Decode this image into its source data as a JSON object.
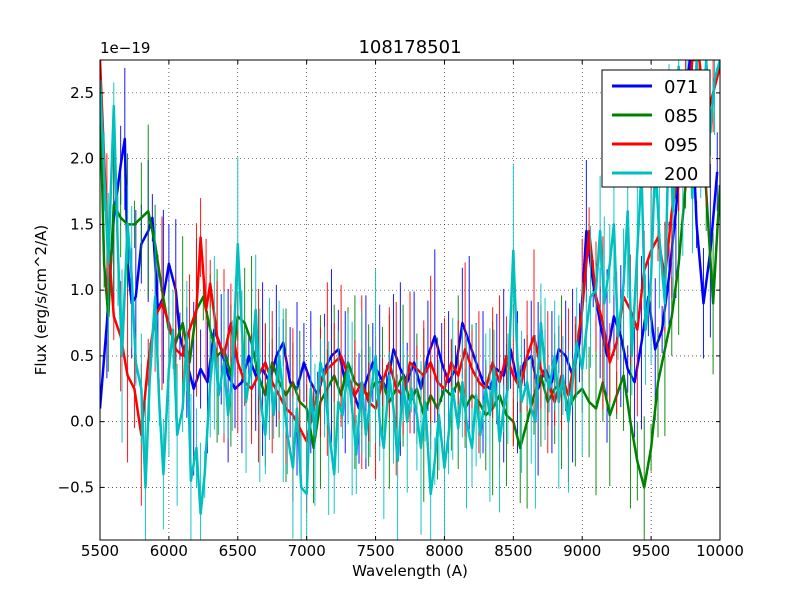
{
  "chart_data": {
    "type": "line",
    "title": "108178501",
    "xlabel": "Wavelength (A)",
    "ylabel": "Flux (erg/s/cm^2/A)",
    "offset_text": "1e−19",
    "xlim": [
      5500,
      10000
    ],
    "ylim": [
      -0.9,
      2.75
    ],
    "xticks": [
      5500,
      6000,
      6500,
      7000,
      7500,
      8000,
      8500,
      9000,
      9500,
      10000
    ],
    "yticks": [
      -0.5,
      0.0,
      0.5,
      1.0,
      1.5,
      2.0,
      2.5
    ],
    "ytick_labels": [
      "−0.5",
      "0.0",
      "0.5",
      "1.0",
      "1.5",
      "2.0",
      "2.5"
    ],
    "grid": true,
    "legend_position": "top-right",
    "series": [
      {
        "name": "071",
        "color": "#0000ff",
        "x": [
          5500,
          5550,
          5600,
          5650,
          5680,
          5700,
          5730,
          5760,
          5800,
          5850,
          5880,
          5920,
          5960,
          6000,
          6050,
          6080,
          6130,
          6180,
          6230,
          6280,
          6330,
          6380,
          6430,
          6480,
          6530,
          6580,
          6630,
          6680,
          6730,
          6780,
          6830,
          6880,
          6930,
          6980,
          7030,
          7080,
          7130,
          7180,
          7230,
          7280,
          7330,
          7380,
          7430,
          7480,
          7530,
          7580,
          7630,
          7680,
          7730,
          7780,
          7830,
          7880,
          7930,
          7980,
          8030,
          8080,
          8130,
          8180,
          8230,
          8280,
          8330,
          8380,
          8430,
          8480,
          8530,
          8580,
          8630,
          8680,
          8730,
          8780,
          8830,
          8880,
          8930,
          8980,
          9030,
          9080,
          9130,
          9180,
          9230,
          9280,
          9330,
          9380,
          9430,
          9480,
          9530,
          9580,
          9630,
          9680,
          9730,
          9780,
          9830,
          9880,
          9930,
          9980
        ],
        "y": [
          0.1,
          0.75,
          1.55,
          1.95,
          2.15,
          1.2,
          0.9,
          0.95,
          1.35,
          1.45,
          1.55,
          0.85,
          0.95,
          1.2,
          1.0,
          0.65,
          0.45,
          0.25,
          0.4,
          0.3,
          0.7,
          0.55,
          0.35,
          0.25,
          0.3,
          0.5,
          0.35,
          0.4,
          0.3,
          0.5,
          0.6,
          0.3,
          0.25,
          0.45,
          0.3,
          0.2,
          0.4,
          0.5,
          0.55,
          0.3,
          0.25,
          0.1,
          0.3,
          0.45,
          0.35,
          0.25,
          0.55,
          0.4,
          0.3,
          0.45,
          0.25,
          0.5,
          0.65,
          0.45,
          0.3,
          0.4,
          0.75,
          0.6,
          0.45,
          0.3,
          0.25,
          0.4,
          0.35,
          0.55,
          0.3,
          0.45,
          0.5,
          0.25,
          0.4,
          0.3,
          0.55,
          0.5,
          0.35,
          0.6,
          1.45,
          1.05,
          0.75,
          0.5,
          0.8,
          0.65,
          0.4,
          0.3,
          0.6,
          0.95,
          0.55,
          0.7,
          1.1,
          1.6,
          2.2,
          2.75,
          1.5,
          0.9,
          1.3,
          1.9
        ]
      },
      {
        "name": "085",
        "color": "#008000",
        "x": [
          5500,
          5530,
          5560,
          5600,
          5650,
          5700,
          5750,
          5800,
          5850,
          5900,
          5950,
          6000,
          6050,
          6100,
          6150,
          6200,
          6250,
          6300,
          6350,
          6400,
          6450,
          6500,
          6550,
          6600,
          6650,
          6700,
          6750,
          6800,
          6850,
          6900,
          6950,
          7000,
          7050,
          7100,
          7150,
          7200,
          7250,
          7300,
          7350,
          7400,
          7450,
          7500,
          7550,
          7600,
          7650,
          7700,
          7750,
          7800,
          7850,
          7900,
          7950,
          8000,
          8050,
          8100,
          8150,
          8200,
          8250,
          8300,
          8350,
          8400,
          8450,
          8500,
          8550,
          8600,
          8650,
          8700,
          8750,
          8800,
          8850,
          8900,
          8950,
          9000,
          9050,
          9100,
          9150,
          9200,
          9250,
          9300,
          9350,
          9400,
          9450,
          9500,
          9550,
          9600,
          9650,
          9700,
          9750,
          9800,
          9850,
          9900,
          9950,
          10000
        ],
        "y": [
          2.5,
          1.2,
          0.8,
          1.65,
          1.55,
          1.5,
          1.5,
          1.55,
          1.6,
          1.35,
          1.0,
          0.7,
          0.6,
          0.75,
          0.45,
          0.85,
          0.95,
          0.7,
          0.5,
          0.55,
          0.35,
          0.8,
          0.75,
          0.6,
          0.35,
          0.2,
          0.45,
          0.3,
          0.2,
          0.3,
          0.15,
          0.1,
          -0.2,
          0.15,
          0.25,
          0.35,
          0.2,
          0.45,
          0.3,
          0.25,
          0.2,
          0.3,
          0.3,
          0.15,
          0.25,
          0.35,
          0.15,
          0.25,
          0.05,
          0.2,
          0.1,
          0.25,
          0.2,
          0.3,
          0.1,
          0.2,
          0.15,
          0.05,
          0.1,
          0.2,
          0.05,
          0.0,
          -0.2,
          0.0,
          0.2,
          0.35,
          0.15,
          0.25,
          0.3,
          0.1,
          0.2,
          0.25,
          0.15,
          0.1,
          0.3,
          0.05,
          0.2,
          0.35,
          0.0,
          -0.3,
          -0.5,
          -0.2,
          0.3,
          0.55,
          0.8,
          1.2,
          1.8,
          2.3,
          2.6,
          1.75,
          0.9,
          1.8
        ]
      },
      {
        "name": "095",
        "color": "#ff0000",
        "x": [
          5500,
          5550,
          5600,
          5650,
          5700,
          5750,
          5800,
          5850,
          5900,
          5950,
          6000,
          6050,
          6100,
          6150,
          6200,
          6230,
          6270,
          6300,
          6350,
          6400,
          6450,
          6500,
          6550,
          6600,
          6650,
          6700,
          6750,
          6800,
          6850,
          6900,
          6950,
          7000,
          7050,
          7100,
          7150,
          7200,
          7250,
          7300,
          7350,
          7400,
          7450,
          7500,
          7550,
          7600,
          7650,
          7700,
          7750,
          7800,
          7850,
          7900,
          7950,
          8000,
          8050,
          8100,
          8150,
          8200,
          8250,
          8300,
          8350,
          8400,
          8450,
          8500,
          8550,
          8600,
          8650,
          8700,
          8750,
          8800,
          8850,
          8900,
          8950,
          9000,
          9050,
          9100,
          9150,
          9200,
          9250,
          9300,
          9350,
          9400,
          9450,
          9500,
          9550,
          9600,
          9650,
          9700,
          9750,
          9800,
          9850,
          9900,
          9950,
          10000
        ],
        "y": [
          2.75,
          1.5,
          0.8,
          0.65,
          0.35,
          0.25,
          -0.1,
          0.45,
          0.8,
          0.9,
          0.75,
          0.55,
          0.5,
          0.7,
          0.85,
          1.4,
          0.85,
          1.05,
          0.65,
          0.5,
          0.75,
          0.45,
          0.3,
          0.25,
          0.35,
          0.45,
          0.3,
          0.2,
          0.1,
          0.05,
          -0.05,
          -0.15,
          0.1,
          0.3,
          0.4,
          0.45,
          0.5,
          0.35,
          0.2,
          0.3,
          0.15,
          0.1,
          0.3,
          0.45,
          0.25,
          0.2,
          0.45,
          0.4,
          0.35,
          0.45,
          0.3,
          0.25,
          0.45,
          0.35,
          0.55,
          0.4,
          0.3,
          0.25,
          0.45,
          0.3,
          0.5,
          0.35,
          0.25,
          0.5,
          0.65,
          0.4,
          0.3,
          0.15,
          0.35,
          0.2,
          0.5,
          0.85,
          1.45,
          0.95,
          0.75,
          0.45,
          0.6,
          0.95,
          0.85,
          0.7,
          1.15,
          1.3,
          1.4,
          1.1,
          1.6,
          1.9,
          2.3,
          2.75,
          2.75,
          2.3,
          2.5,
          2.7
        ]
      },
      {
        "name": "200",
        "color": "#00bfbf",
        "x": [
          5500,
          5530,
          5560,
          5600,
          5630,
          5660,
          5700,
          5730,
          5760,
          5800,
          5830,
          5860,
          5900,
          5930,
          5960,
          6000,
          6030,
          6060,
          6100,
          6130,
          6160,
          6200,
          6230,
          6260,
          6300,
          6330,
          6360,
          6400,
          6430,
          6460,
          6500,
          6530,
          6560,
          6600,
          6630,
          6660,
          6700,
          6730,
          6760,
          6800,
          6830,
          6860,
          6900,
          6930,
          6960,
          7000,
          7030,
          7060,
          7100,
          7130,
          7160,
          7200,
          7230,
          7260,
          7300,
          7330,
          7360,
          7400,
          7430,
          7460,
          7500,
          7530,
          7560,
          7600,
          7630,
          7660,
          7700,
          7730,
          7760,
          7800,
          7830,
          7860,
          7900,
          7930,
          7960,
          8000,
          8030,
          8060,
          8100,
          8130,
          8160,
          8200,
          8230,
          8260,
          8300,
          8330,
          8360,
          8400,
          8430,
          8460,
          8500,
          8530,
          8560,
          8600,
          8630,
          8660,
          8700,
          8730,
          8760,
          8800,
          8830,
          8860,
          8900,
          8930,
          8960,
          9000,
          9030,
          9060,
          9100,
          9130,
          9160,
          9200,
          9230,
          9260,
          9300,
          9330,
          9360,
          9400,
          9430,
          9460,
          9500,
          9530,
          9560,
          9600,
          9630,
          9660,
          9700,
          9730,
          9760,
          9800,
          9830,
          9860,
          9900,
          9930,
          9960,
          10000
        ],
        "y": [
          2.6,
          1.9,
          1.2,
          2.4,
          1.3,
          0.5,
          1.5,
          1.1,
          0.45,
          0.25,
          -0.5,
          0.3,
          0.95,
          0.15,
          -0.4,
          0.4,
          0.7,
          -0.1,
          0.1,
          0.65,
          -0.45,
          -0.2,
          -0.7,
          -0.4,
          0.3,
          0.6,
          0.2,
          0.45,
          0.05,
          0.35,
          1.35,
          0.7,
          0.15,
          0.45,
          0.85,
          0.2,
          -0.1,
          0.4,
          0.05,
          0.5,
          0.2,
          -0.1,
          -0.35,
          0.1,
          -0.5,
          -0.55,
          0.25,
          -0.1,
          0.45,
          0.3,
          -0.05,
          -0.4,
          0.15,
          0.05,
          0.4,
          0.1,
          -0.25,
          0.3,
          -0.1,
          0.15,
          0.5,
          0.0,
          -0.2,
          0.35,
          0.1,
          -0.3,
          0.3,
          0.0,
          0.25,
          0.05,
          -0.2,
          0.15,
          -0.55,
          -0.3,
          0.05,
          -0.35,
          -0.1,
          0.25,
          -0.05,
          0.3,
          0.0,
          -0.2,
          0.2,
          -0.1,
          0.25,
          0.05,
          0.4,
          -0.15,
          0.1,
          0.25,
          1.3,
          0.45,
          0.15,
          0.3,
          0.1,
          0.0,
          0.75,
          0.4,
          0.25,
          0.5,
          0.15,
          0.35,
          0.0,
          0.3,
          0.6,
          0.4,
          0.7,
          0.95,
          1.0,
          1.45,
          0.9,
          1.2,
          1.5,
          0.65,
          1.05,
          1.6,
          0.5,
          1.3,
          1.9,
          0.7,
          1.1,
          2.0,
          1.4,
          0.9,
          2.3,
          1.6,
          2.7,
          1.8,
          2.6,
          1.7,
          2.75,
          2.0,
          2.75,
          2.2,
          2.6,
          2.75
        ]
      }
    ]
  }
}
